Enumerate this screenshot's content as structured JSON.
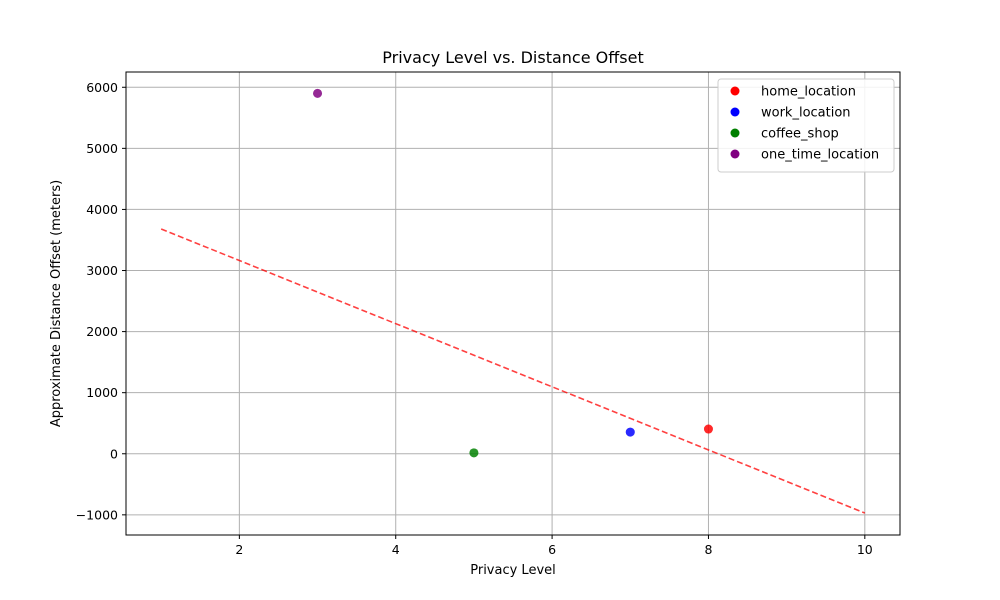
{
  "chart_data": {
    "type": "scatter",
    "title": "Privacy Level vs. Distance Offset",
    "xlabel": "Privacy Level",
    "ylabel": "Approximate Distance Offset (meters)",
    "xlim": [
      0.55,
      10.45
    ],
    "ylim": [
      -1330,
      6250
    ],
    "xticks": [
      2,
      4,
      6,
      8,
      10
    ],
    "yticks": [
      -1000,
      0,
      1000,
      2000,
      3000,
      4000,
      5000,
      6000
    ],
    "grid": true,
    "legend_position": "top-right",
    "series": [
      {
        "name": "home_location",
        "color": "#ff0000",
        "points": [
          {
            "x": 8,
            "y": 405
          }
        ]
      },
      {
        "name": "work_location",
        "color": "#0000ff",
        "points": [
          {
            "x": 7,
            "y": 355
          }
        ]
      },
      {
        "name": "coffee_shop",
        "color": "#008000",
        "points": [
          {
            "x": 5,
            "y": 15
          }
        ]
      },
      {
        "name": "one_time_location",
        "color": "#800080",
        "points": [
          {
            "x": 3,
            "y": 5900
          }
        ]
      }
    ],
    "trend_line": {
      "color": "#ff0000",
      "style": "dashed",
      "x": [
        1,
        10
      ],
      "y": [
        3680,
        -970
      ]
    }
  }
}
